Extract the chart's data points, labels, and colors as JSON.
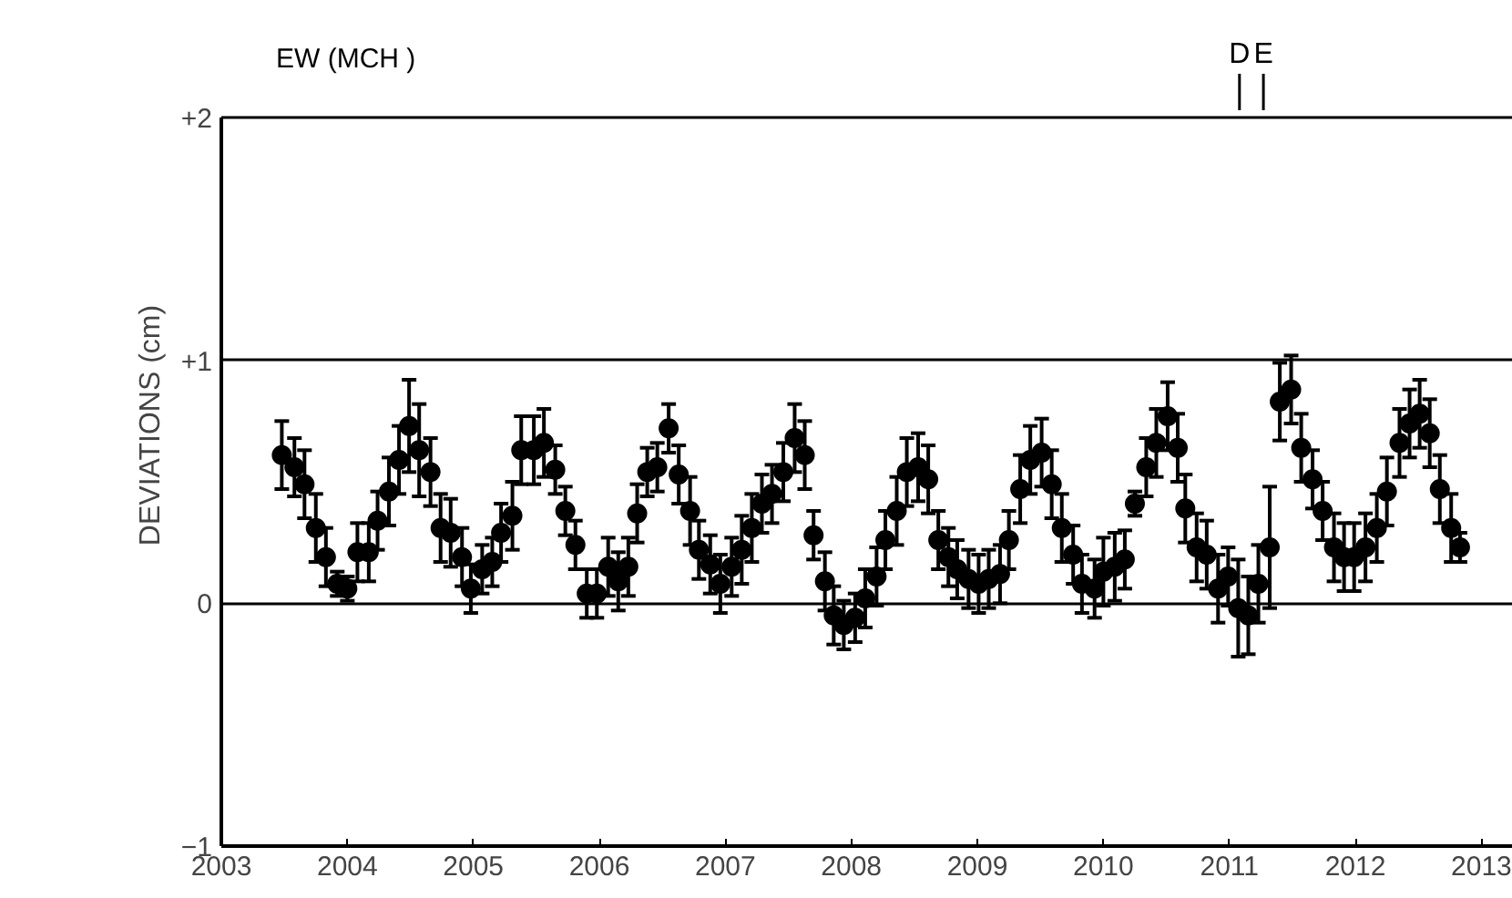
{
  "chart_data": {
    "type": "scatter",
    "title": "EW (MCH )",
    "ylabel": "DEVIATIONS (cm)",
    "x": [
      2003.48,
      2003.58,
      2003.66,
      2003.75,
      2003.83,
      2003.92,
      2004.0,
      2004.08,
      2004.17,
      2004.24,
      2004.33,
      2004.41,
      2004.49,
      2004.57,
      2004.66,
      2004.74,
      2004.82,
      2004.91,
      2004.98,
      2005.07,
      2005.15,
      2005.22,
      2005.31,
      2005.38,
      2005.48,
      2005.56,
      2005.65,
      2005.73,
      2005.81,
      2005.9,
      2005.98,
      2006.07,
      2006.15,
      2006.23,
      2006.3,
      2006.38,
      2006.46,
      2006.55,
      2006.63,
      2006.72,
      2006.79,
      2006.88,
      2006.96,
      2007.05,
      2007.13,
      2007.21,
      2007.29,
      2007.37,
      2007.46,
      2007.55,
      2007.63,
      2007.7,
      2007.79,
      2007.86,
      2007.94,
      2008.03,
      2008.11,
      2008.2,
      2008.27,
      2008.36,
      2008.44,
      2008.53,
      2008.61,
      2008.69,
      2008.77,
      2008.84,
      2008.93,
      2009.01,
      2009.09,
      2009.18,
      2009.25,
      2009.34,
      2009.42,
      2009.51,
      2009.59,
      2009.67,
      2009.76,
      2009.83,
      2009.93,
      2010.0,
      2010.09,
      2010.17,
      2010.25,
      2010.34,
      2010.42,
      2010.51,
      2010.59,
      2010.65,
      2010.74,
      2010.82,
      2010.91,
      2010.99,
      2011.07,
      2011.15,
      2011.23,
      2011.32,
      2011.4,
      2011.49,
      2011.57,
      2011.66,
      2011.74,
      2011.83,
      2011.91,
      2011.99,
      2012.08,
      2012.17,
      2012.25,
      2012.35,
      2012.43,
      2012.51,
      2012.59,
      2012.67,
      2012.76,
      2012.83
    ],
    "series": [
      {
        "color": "#000000",
        "values": [
          0.61,
          0.56,
          0.49,
          0.31,
          0.19,
          0.08,
          0.06,
          0.21,
          0.21,
          0.34,
          0.46,
          0.59,
          0.73,
          0.63,
          0.54,
          0.31,
          0.29,
          0.19,
          0.06,
          0.14,
          0.17,
          0.29,
          0.36,
          0.63,
          0.63,
          0.66,
          0.55,
          0.38,
          0.24,
          0.04,
          0.04,
          0.15,
          0.09,
          0.15,
          0.37,
          0.54,
          0.56,
          0.72,
          0.53,
          0.38,
          0.22,
          0.16,
          0.08,
          0.15,
          0.22,
          0.31,
          0.41,
          0.45,
          0.54,
          0.68,
          0.61,
          0.28,
          0.09,
          -0.05,
          -0.09,
          -0.06,
          0.02,
          0.11,
          0.26,
          0.38,
          0.54,
          0.56,
          0.51,
          0.26,
          0.19,
          0.14,
          0.1,
          0.08,
          0.1,
          0.12,
          0.26,
          0.47,
          0.59,
          0.62,
          0.49,
          0.31,
          0.2,
          0.08,
          0.06,
          0.13,
          0.15,
          0.18,
          0.41,
          0.56,
          0.66,
          0.77,
          0.64,
          0.39,
          0.23,
          0.2,
          0.06,
          0.11,
          -0.02,
          -0.05,
          0.08,
          0.23,
          0.83,
          0.88,
          0.64,
          0.51,
          0.38,
          0.23,
          0.19,
          0.19,
          0.23,
          0.31,
          0.46,
          0.66,
          0.74,
          0.78,
          0.7,
          0.47,
          0.31,
          0.23
        ],
        "errors": [
          0.14,
          0.12,
          0.14,
          0.14,
          0.12,
          0.05,
          0.05,
          0.12,
          0.12,
          0.12,
          0.14,
          0.14,
          0.19,
          0.19,
          0.14,
          0.14,
          0.14,
          0.12,
          0.1,
          0.1,
          0.1,
          0.12,
          0.14,
          0.14,
          0.14,
          0.14,
          0.1,
          0.1,
          0.1,
          0.1,
          0.1,
          0.12,
          0.12,
          0.12,
          0.12,
          0.1,
          0.1,
          0.1,
          0.12,
          0.14,
          0.12,
          0.12,
          0.12,
          0.12,
          0.14,
          0.14,
          0.12,
          0.12,
          0.12,
          0.14,
          0.14,
          0.1,
          0.12,
          0.12,
          0.1,
          0.1,
          0.12,
          0.12,
          0.12,
          0.14,
          0.14,
          0.14,
          0.14,
          0.12,
          0.12,
          0.12,
          0.12,
          0.12,
          0.12,
          0.12,
          0.12,
          0.14,
          0.14,
          0.14,
          0.14,
          0.14,
          0.12,
          0.12,
          0.12,
          0.14,
          0.14,
          0.12,
          0.05,
          0.12,
          0.14,
          0.14,
          0.14,
          0.14,
          0.14,
          0.14,
          0.14,
          0.12,
          0.2,
          0.16,
          0.16,
          0.25,
          0.16,
          0.14,
          0.14,
          0.12,
          0.12,
          0.14,
          0.14,
          0.14,
          0.14,
          0.14,
          0.14,
          0.14,
          0.14,
          0.14,
          0.14,
          0.14,
          0.14,
          0.06
        ]
      }
    ],
    "ylim": [
      -1,
      2
    ],
    "yticks": [
      {
        "value": 2,
        "label": "+2"
      },
      {
        "value": 1,
        "label": "+1"
      },
      0,
      -1
    ],
    "xlim": [
      2003,
      2013.25
    ],
    "xticks": [
      2003,
      2004,
      2005,
      2006,
      2007,
      2008,
      2009,
      2010,
      2011,
      2012,
      2013
    ],
    "grid": "y",
    "marker": "circle",
    "annotations": [
      {
        "text": "D",
        "x": 2011.08
      },
      {
        "text": "E",
        "x": 2011.27
      }
    ]
  }
}
